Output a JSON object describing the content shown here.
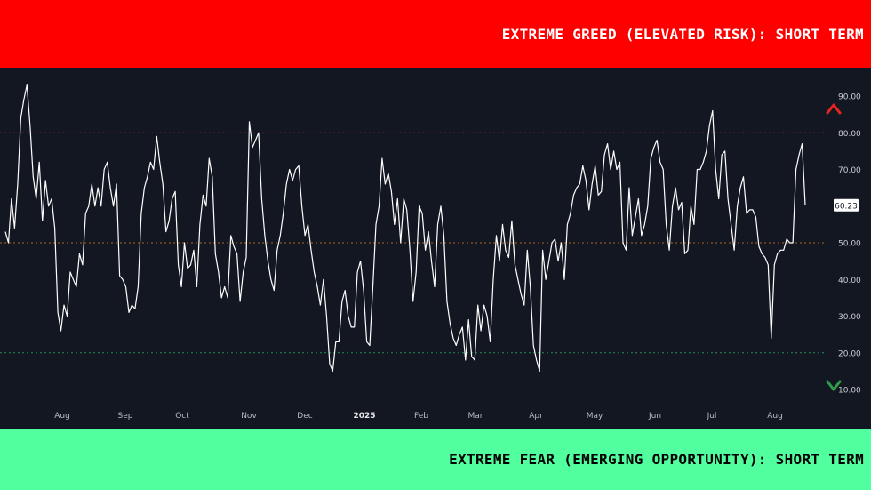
{
  "banners": {
    "top": "EXTREME GREED (ELEVATED RISK): SHORT TERM",
    "bottom": "EXTREME FEAR (EMERGING OPPORTUNITY): SHORT TERM"
  },
  "colors": {
    "top_banner": "#ff0000",
    "bottom_banner": "#52ff9e",
    "background": "#131722",
    "line": "#ffffff",
    "greed_line": "#c0392b",
    "mid_line": "#d97a1f",
    "fear_line": "#27ae60",
    "arrow_top": "#e52521",
    "arrow_mid": "#d98a1f",
    "arrow_bottom": "#2e9e4a"
  },
  "chart_data": {
    "type": "line",
    "ylim": [
      5,
      97
    ],
    "grid": false,
    "y_ticks": [
      "90.00",
      "80.00",
      "70.00",
      "60.23",
      "50.00",
      "40.00",
      "30.00",
      "20.00",
      "10.00"
    ],
    "y_tick_values": [
      90,
      80,
      70,
      60.23,
      50,
      40,
      30,
      20,
      10
    ],
    "last_value": 60.23,
    "last_value_label": "60.23",
    "reference_lines": [
      {
        "level": 80,
        "role": "greed"
      },
      {
        "level": 50,
        "role": "mid"
      },
      {
        "level": 20,
        "role": "fear"
      }
    ],
    "x_labels": [
      "Aug",
      "Sep",
      "Oct",
      "Nov",
      "Dec",
      "2025",
      "Feb",
      "Mar",
      "Apr",
      "May",
      "Jun",
      "Jul",
      "Aug"
    ],
    "series": [
      {
        "values": [
          53,
          50,
          62,
          54,
          66,
          84,
          89,
          93,
          82,
          68,
          62,
          72,
          56,
          67,
          60,
          62,
          54,
          31,
          26,
          33,
          30,
          42,
          40,
          38,
          47,
          44,
          58,
          60,
          66,
          60,
          65,
          60,
          70,
          72,
          65,
          60,
          66,
          41,
          40,
          38,
          31,
          33,
          32,
          38,
          58,
          65,
          68,
          72,
          70,
          79,
          72,
          66,
          53,
          56,
          62,
          64,
          44,
          38,
          50,
          43,
          44,
          48,
          38,
          55,
          63,
          60,
          73,
          68,
          47,
          42,
          35,
          38,
          35,
          52,
          49,
          47,
          34,
          42,
          46,
          83,
          76,
          78,
          80,
          62,
          52,
          45,
          40,
          37,
          48,
          52,
          58,
          66,
          70,
          67,
          70,
          71,
          60,
          52,
          55,
          48,
          42,
          38,
          33,
          40,
          30,
          17,
          15,
          23,
          23,
          34,
          37,
          30,
          27,
          27,
          42,
          45,
          37,
          23,
          22,
          38,
          55,
          60,
          73,
          66,
          69,
          64,
          55,
          62,
          50,
          62,
          59,
          48,
          34,
          42,
          60,
          58,
          48,
          53,
          45,
          38,
          55,
          60,
          52,
          34,
          28,
          24,
          22,
          25,
          27,
          18,
          29,
          19,
          18,
          33,
          26,
          33,
          30,
          23,
          40,
          52,
          45,
          55,
          48,
          46,
          56,
          44,
          40,
          36,
          33,
          48,
          38,
          22,
          18,
          15,
          48,
          40,
          45,
          50,
          51,
          45,
          50,
          40,
          55,
          58,
          63,
          65,
          66,
          71,
          67,
          59,
          66,
          71,
          63,
          64,
          74,
          77,
          70,
          75,
          70,
          72,
          50,
          48,
          65,
          52,
          57,
          62,
          52,
          55,
          60,
          73,
          76,
          78,
          72,
          70,
          55,
          48,
          60,
          65,
          59,
          61,
          47,
          48,
          60,
          55,
          70,
          70,
          72,
          75,
          82,
          86,
          70,
          62,
          74,
          75,
          62,
          55,
          48,
          60,
          65,
          68,
          58,
          59,
          59,
          57,
          49,
          47,
          46,
          44,
          24,
          44,
          47,
          48,
          48,
          51,
          50,
          50,
          70,
          74,
          77,
          60.23
        ]
      }
    ]
  }
}
